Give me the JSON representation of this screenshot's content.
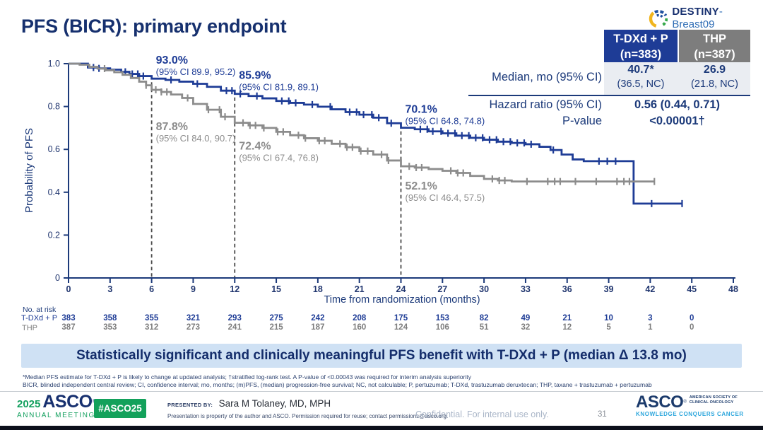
{
  "slide": {
    "title": "PFS (BICR): primary endpoint",
    "program_logo": {
      "name": "DESTINY",
      "suffix": "-Breast09"
    }
  },
  "colors": {
    "tdxd_blue": "#1e3c96",
    "thp_gray": "#8c8c8c",
    "header_blue_bg": "#1e3c96",
    "header_gray_bg": "#7d7d7d",
    "banner_bg": "#cfe1f4",
    "accent_navy": "#16306e",
    "asco_green": "#13a15b",
    "asco_teal": "#2ea7dd"
  },
  "stats_table": {
    "columns": [
      {
        "header_line1": "T-DXd + P",
        "header_line2": "(n=383)"
      },
      {
        "header_line1": "THP",
        "header_line2": "(n=387)"
      }
    ],
    "median_label": "Median, mo (95% CI)",
    "median_tdxd": "40.7*",
    "median_tdxd_ci": "(36.5, NC)",
    "median_thp": "26.9",
    "median_thp_ci": "(21.8, NC)",
    "hazard_label": "Hazard ratio (95% CI)",
    "hazard_value": "0.56 (0.44, 0.71)",
    "pvalue_label": "P-value",
    "pvalue_value": "<0.00001†"
  },
  "chart_data": {
    "type": "line",
    "subtype": "kaplan-meier",
    "xlabel": "Time from randomization (months)",
    "ylabel": "Probability of PFS",
    "xlim": [
      0,
      48
    ],
    "ylim": [
      0,
      1.0
    ],
    "xticks": [
      0,
      3,
      6,
      9,
      12,
      15,
      18,
      21,
      24,
      27,
      30,
      33,
      36,
      39,
      42,
      45,
      48
    ],
    "ytick_values": [
      1.0,
      0.8,
      0.6,
      0.4,
      0.2,
      0
    ],
    "ytick_labels": [
      "1.0",
      "0.8",
      "0.6",
      "0.4",
      "0.2",
      "0"
    ],
    "grid": false,
    "dashed_guides_at_months": [
      6,
      12,
      24
    ],
    "series": [
      {
        "name": "T-DXd + P",
        "color": "#1e3c96",
        "steps": [
          [
            0,
            1.0
          ],
          [
            1.4,
            0.982
          ],
          [
            2.2,
            0.978
          ],
          [
            3,
            0.972
          ],
          [
            3.8,
            0.962
          ],
          [
            4.4,
            0.952
          ],
          [
            5.1,
            0.942
          ],
          [
            6,
            0.93
          ],
          [
            7,
            0.924
          ],
          [
            8,
            0.916
          ],
          [
            9,
            0.906
          ],
          [
            10,
            0.892
          ],
          [
            11,
            0.874
          ],
          [
            12,
            0.859
          ],
          [
            13,
            0.849
          ],
          [
            14,
            0.838
          ],
          [
            15,
            0.826
          ],
          [
            16,
            0.817
          ],
          [
            17,
            0.809
          ],
          [
            18,
            0.799
          ],
          [
            19,
            0.787
          ],
          [
            20,
            0.774
          ],
          [
            21,
            0.762
          ],
          [
            22,
            0.748
          ],
          [
            23,
            0.722
          ],
          [
            24,
            0.701
          ],
          [
            25,
            0.694
          ],
          [
            26,
            0.684
          ],
          [
            27,
            0.675
          ],
          [
            28,
            0.664
          ],
          [
            29,
            0.654
          ],
          [
            30,
            0.645
          ],
          [
            31,
            0.636
          ],
          [
            32,
            0.63
          ],
          [
            33,
            0.624
          ],
          [
            34,
            0.612
          ],
          [
            34.8,
            0.597
          ],
          [
            35.6,
            0.576
          ],
          [
            36.4,
            0.553
          ],
          [
            37.2,
            0.545
          ],
          [
            40.8,
            0.347
          ],
          [
            44.3,
            0.347
          ]
        ],
        "censors": [
          1.8,
          2.2,
          4.1,
          4.6,
          5.0,
          5.4,
          7.4,
          9.3,
          11.4,
          11.8,
          12.4,
          13.6,
          15.4,
          15.9,
          16.4,
          17.6,
          18.9,
          20.3,
          20.8,
          21.3,
          21.9,
          22.4,
          23.3,
          25.4,
          25.9,
          26.3,
          26.9,
          27.4,
          27.9,
          28.4,
          28.9,
          29.4,
          29.9,
          30.4,
          30.9,
          31.4,
          31.9,
          32.4,
          32.9,
          33.4,
          35.0,
          38.3,
          38.9,
          39.5,
          42.1,
          44.3
        ],
        "annotations": [
          {
            "month": 6,
            "value": "93.0%",
            "ci": "(95% CI 89.9, 95.2)"
          },
          {
            "month": 12,
            "value": "85.9%",
            "ci": "(95% CI 81.9, 89.1)"
          },
          {
            "month": 24,
            "value": "70.1%",
            "ci": "(95% CI 64.8, 74.8)"
          }
        ]
      },
      {
        "name": "THP",
        "color": "#8c8c8c",
        "steps": [
          [
            0,
            1.0
          ],
          [
            0.8,
            0.995
          ],
          [
            1.5,
            0.985
          ],
          [
            2.1,
            0.977
          ],
          [
            2.7,
            0.969
          ],
          [
            3.3,
            0.96
          ],
          [
            3.9,
            0.948
          ],
          [
            4.5,
            0.933
          ],
          [
            5.1,
            0.916
          ],
          [
            5.6,
            0.899
          ],
          [
            6,
            0.878
          ],
          [
            6.7,
            0.868
          ],
          [
            7.4,
            0.856
          ],
          [
            8.2,
            0.84
          ],
          [
            9,
            0.812
          ],
          [
            10,
            0.785
          ],
          [
            11,
            0.752
          ],
          [
            12,
            0.724
          ],
          [
            13,
            0.712
          ],
          [
            14,
            0.7
          ],
          [
            15,
            0.682
          ],
          [
            16,
            0.666
          ],
          [
            17,
            0.652
          ],
          [
            18,
            0.64
          ],
          [
            19,
            0.626
          ],
          [
            20,
            0.61
          ],
          [
            21,
            0.592
          ],
          [
            22,
            0.576
          ],
          [
            23,
            0.548
          ],
          [
            24,
            0.521
          ],
          [
            25,
            0.515
          ],
          [
            26,
            0.508
          ],
          [
            27,
            0.5
          ],
          [
            28,
            0.49
          ],
          [
            29,
            0.476
          ],
          [
            30,
            0.462
          ],
          [
            31,
            0.455
          ],
          [
            32,
            0.45
          ],
          [
            42.3,
            0.45
          ]
        ],
        "censors": [
          2.6,
          5.6,
          6.3,
          6.7,
          7.1,
          8.6,
          10.1,
          10.9,
          11.3,
          12.6,
          13.1,
          13.5,
          14.1,
          15.1,
          15.5,
          16.6,
          17.1,
          18.1,
          18.5,
          19.6,
          20.1,
          20.5,
          21.1,
          21.6,
          22.6,
          23.1,
          24.6,
          25.1,
          25.5,
          27.6,
          28.1,
          28.5,
          30.6,
          31.1,
          31.5,
          33.1,
          34.6,
          35.1,
          35.5,
          36.6,
          38.1,
          39.6,
          40.1,
          40.5,
          42.3
        ],
        "annotations": [
          {
            "month": 6,
            "value": "87.8%",
            "ci": "(95% CI 84.0, 90.7)"
          },
          {
            "month": 12,
            "value": "72.4%",
            "ci": "(95% CI 67.4, 76.8)"
          },
          {
            "month": 24,
            "value": "52.1%",
            "ci": "(95% CI 46.4, 57.5)"
          }
        ]
      }
    ]
  },
  "at_risk": {
    "label": "No. at risk",
    "months": [
      0,
      3,
      6,
      9,
      12,
      15,
      18,
      21,
      24,
      27,
      30,
      33,
      36,
      39,
      42,
      45
    ],
    "rows": [
      {
        "name": "T-DXd + P",
        "color": "#1e3c96",
        "values": [
          383,
          358,
          355,
          321,
          293,
          275,
          242,
          208,
          175,
          153,
          82,
          49,
          21,
          10,
          3,
          0
        ]
      },
      {
        "name": "THP",
        "color": "#7d7d7d",
        "values": [
          387,
          353,
          312,
          273,
          241,
          215,
          187,
          160,
          124,
          106,
          51,
          32,
          12,
          5,
          1,
          0
        ]
      }
    ]
  },
  "banner": {
    "text": "Statistically significant and clinically meaningful PFS benefit with T-DXd + P (median Δ 13.8 mo)"
  },
  "footnotes": {
    "line1": "*Median PFS estimate for T-DXd + P is likely to change at updated analysis; †stratified log-rank test. A P-value of <0.00043 was required for interim analysis superiority",
    "line2": "BICR, blinded independent central review; CI, confidence interval; mo, months; (m)PFS, (median) progression-free survival; NC, not calculable; P, pertuzumab; T-DXd, trastuzumab deruxtecan; THP, taxane + trastuzumab + pertuzumab"
  },
  "footer": {
    "year": "2025",
    "asco_wordmark": "ASCO",
    "annual_meeting": "ANNUAL MEETING",
    "hashtag": "#ASCO25",
    "presented_by_label": "PRESENTED BY:",
    "presenter": "Sara M Tolaney, MD, MPH",
    "permission": "Presentation is property of the author and ASCO. Permission required for reuse; contact permissions@asco.org.",
    "confidential": "Confidential. For internal use only.",
    "page_number": "31",
    "asco_logo_text": "ASCO",
    "asco_society_line1": "AMERICAN SOCIETY OF",
    "asco_society_line2": "CLINICAL ONCOLOGY",
    "asco_tagline": "KNOWLEDGE CONQUERS CANCER"
  }
}
